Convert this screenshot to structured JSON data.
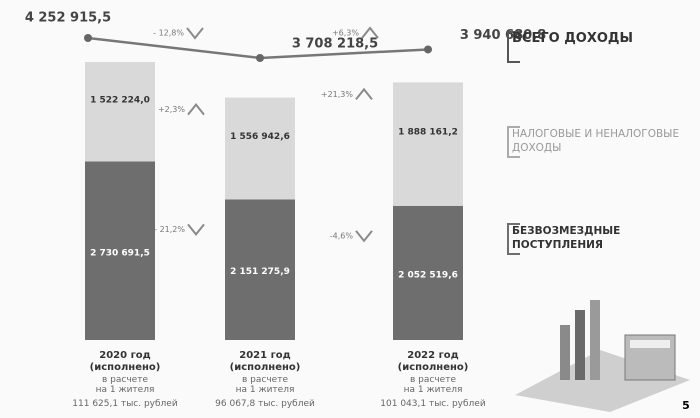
{
  "chart_data": {
    "type": "bar",
    "stacked": true,
    "categories": [
      "2020 год (исполнено)",
      "2021 год (исполнено)",
      "2022 год (исполнено)"
    ],
    "series": [
      {
        "name": "ВСЕГО ДОХОДЫ",
        "type": "line",
        "color": "#777777",
        "values": [
          4252915.5,
          3708218.5,
          3940680.8
        ],
        "value_labels": [
          "4 252 915,5",
          "3 708 218,5",
          "3 940 680,8"
        ],
        "changes": [
          "- 12,8%",
          "+6,3%"
        ]
      },
      {
        "name": "НАЛОГОВЫЕ И НЕНАЛОГОВЫЕ ДОХОДЫ",
        "color": "#d9d9d9",
        "values": [
          1522224.0,
          1556942.6,
          1888161.2
        ],
        "value_labels": [
          "1 522 224,0",
          "1 556 942,6",
          "1 888 161,2"
        ],
        "changes": [
          "+2,3%",
          "+21,3%"
        ]
      },
      {
        "name": "БЕЗВОЗМЕЗДНЫЕ ПОСТУПЛЕНИЯ",
        "color": "#6e6e6e",
        "values": [
          2730691.5,
          2151275.9,
          2052519.6
        ],
        "value_labels": [
          "2 730 691,5",
          "2 151 275,9",
          "2 052 519,6"
        ],
        "changes": [
          "- 21,2%",
          "-4,6%"
        ]
      }
    ],
    "per_capita_label": "в расчете на 1 жителя",
    "per_capita": {
      "values": [
        111625.1,
        96067.8,
        101043.1
      ],
      "value_labels": [
        "111 625,1 тыс. рублей",
        "96 067,8 тыс. рублей",
        "101 043,1 тыс. рублей"
      ]
    },
    "page_number": "5"
  }
}
